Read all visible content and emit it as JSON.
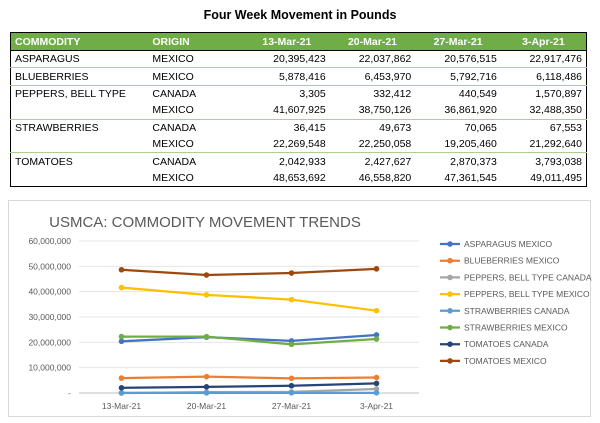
{
  "table": {
    "title": "Four Week Movement in Pounds",
    "headers": [
      "COMMODITY",
      "ORIGIN",
      "13-Mar-21",
      "20-Mar-21",
      "27-Mar-21",
      "3-Apr-21"
    ],
    "rows": [
      {
        "commodity": "ASPARAGUS",
        "origin": "MEXICO",
        "values": [
          "20,395,423",
          "22,037,862",
          "20,576,515",
          "22,917,476"
        ]
      },
      {
        "commodity": "BLUEBERRIES",
        "origin": "MEXICO",
        "values": [
          "5,878,416",
          "6,453,970",
          "5,792,716",
          "6,118,486"
        ]
      },
      {
        "commodity": "PEPPERS, BELL TYPE",
        "origin": "CANADA",
        "values": [
          "3,305",
          "332,412",
          "440,549",
          "1,570,897"
        ]
      },
      {
        "commodity": "",
        "origin": "MEXICO",
        "values": [
          "41,607,925",
          "38,750,126",
          "36,861,920",
          "32,488,350"
        ]
      },
      {
        "commodity": "STRAWBERRIES",
        "origin": "CANADA",
        "values": [
          "36,415",
          "49,673",
          "70,065",
          "67,553"
        ]
      },
      {
        "commodity": "",
        "origin": "MEXICO",
        "values": [
          "22,269,548",
          "22,250,058",
          "19,205,460",
          "21,292,640"
        ]
      },
      {
        "commodity": "TOMATOES",
        "origin": "CANADA",
        "values": [
          "2,042,933",
          "2,427,627",
          "2,870,373",
          "3,793,038"
        ]
      },
      {
        "commodity": "",
        "origin": "MEXICO",
        "values": [
          "48,653,692",
          "46,558,820",
          "47,361,545",
          "49,011,495"
        ]
      }
    ]
  },
  "chart_data": {
    "type": "line",
    "title": "USMCA: COMMODITY MOVEMENT TRENDS",
    "categories": [
      "13-Mar-21",
      "20-Mar-21",
      "27-Mar-21",
      "3-Apr-21"
    ],
    "ylim": [
      0,
      60000000
    ],
    "yticks": [
      0,
      10000000,
      20000000,
      30000000,
      40000000,
      50000000,
      60000000
    ],
    "ytick_labels": [
      "-",
      "10,000,000",
      "20,000,000",
      "30,000,000",
      "40,000,000",
      "50,000,000",
      "60,000,000"
    ],
    "grid": true,
    "legend_position": "right",
    "series": [
      {
        "name": "ASPARAGUS MEXICO",
        "color": "#4472c4",
        "values": [
          20395423,
          22037862,
          20576515,
          22917476
        ]
      },
      {
        "name": "BLUEBERRIES MEXICO",
        "color": "#ed7d31",
        "values": [
          5878416,
          6453970,
          5792716,
          6118486
        ]
      },
      {
        "name": "PEPPERS, BELL TYPE CANADA",
        "color": "#a5a5a5",
        "values": [
          3305,
          332412,
          440549,
          1570897
        ]
      },
      {
        "name": "PEPPERS, BELL TYPE MEXICO",
        "color": "#ffc000",
        "values": [
          41607925,
          38750126,
          36861920,
          32488350
        ]
      },
      {
        "name": "STRAWBERRIES CANADA",
        "color": "#5b9bd5",
        "values": [
          36415,
          49673,
          70065,
          67553
        ]
      },
      {
        "name": "STRAWBERRIES MEXICO",
        "color": "#70ad47",
        "values": [
          22269548,
          22250058,
          19205460,
          21292640
        ]
      },
      {
        "name": "TOMATOES CANADA",
        "color": "#264478",
        "values": [
          2042933,
          2427627,
          2870373,
          3793038
        ]
      },
      {
        "name": "TOMATOES MEXICO",
        "color": "#9e480e",
        "values": [
          48653692,
          46558820,
          47361545,
          49011495
        ]
      }
    ]
  }
}
